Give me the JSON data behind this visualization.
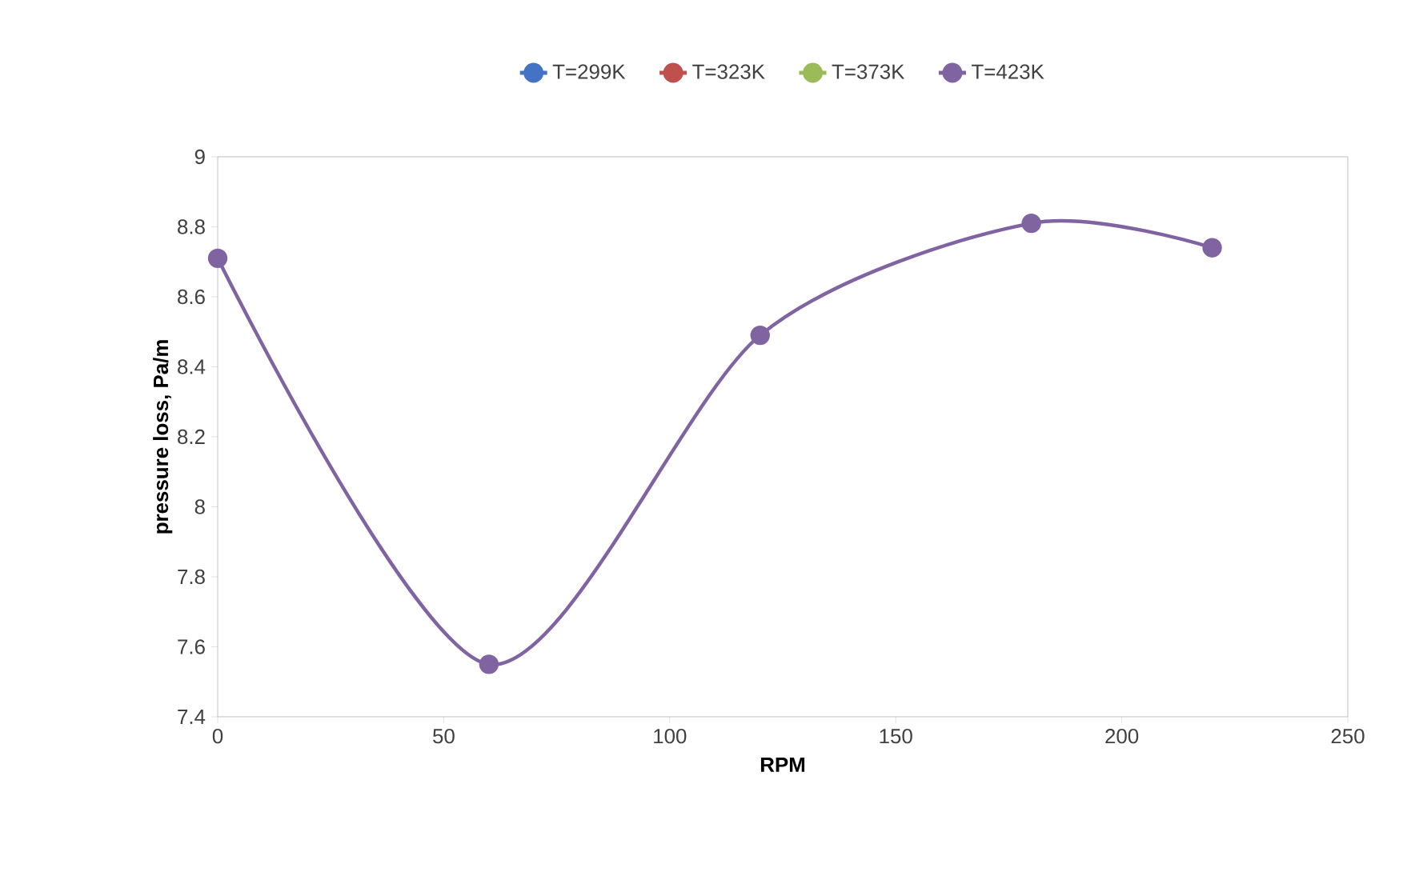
{
  "chart_data": {
    "type": "line",
    "xlabel": "RPM",
    "ylabel": "pressure loss, Pa/m",
    "x": [
      0,
      60,
      120,
      180,
      220
    ],
    "series": [
      {
        "name": "T=299K",
        "color": "#4472c4",
        "values": [
          null,
          null,
          null,
          null,
          null
        ]
      },
      {
        "name": "T=323K",
        "color": "#c0504d",
        "values": [
          null,
          null,
          null,
          null,
          null
        ]
      },
      {
        "name": "T=373K",
        "color": "#9bbb59",
        "values": [
          null,
          null,
          null,
          null,
          null
        ]
      },
      {
        "name": "T=423K",
        "color": "#8064a2",
        "values": [
          8.71,
          7.55,
          8.49,
          8.81,
          8.74
        ]
      }
    ],
    "xlim": [
      0,
      250
    ],
    "xticks": [
      0,
      50,
      100,
      150,
      200,
      250
    ],
    "ylim": [
      7.4,
      9
    ],
    "yticks": [
      7.4,
      7.6,
      7.8,
      8,
      8.2,
      8.4,
      8.6,
      8.8,
      9
    ],
    "marker": "circle",
    "line_style": "solid",
    "legend": "top",
    "grid": false
  }
}
